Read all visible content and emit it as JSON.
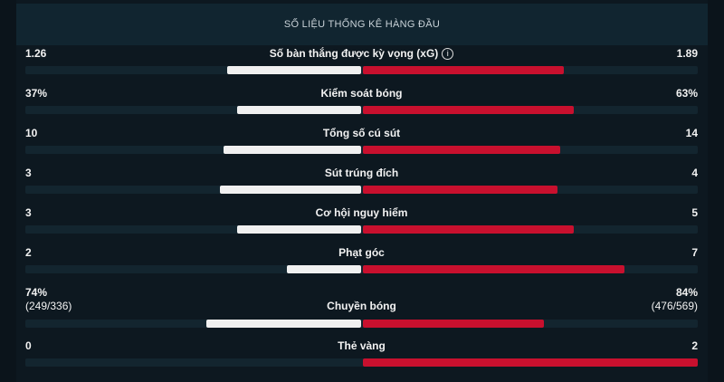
{
  "header": {
    "title": "SỐ LIỆU THỐNG KÊ HÀNG ĐẦU"
  },
  "colors": {
    "home": "#f0f0f0",
    "away": "#c8102e",
    "track": "#13252f"
  },
  "stats": [
    {
      "label": "Số bàn thắng được kỳ vọng (xG)",
      "home": "1.26",
      "away": "1.89",
      "home_share": 0.4,
      "away_share": 0.6,
      "info_icon": "info-circle-icon"
    },
    {
      "label": "Kiểm soát bóng",
      "home": "37%",
      "away": "63%",
      "home_share": 0.37,
      "away_share": 0.63
    },
    {
      "label": "Tổng số cú sút",
      "home": "10",
      "away": "14",
      "home_share": 0.41,
      "away_share": 0.59
    },
    {
      "label": "Sút trúng đích",
      "home": "3",
      "away": "4",
      "home_share": 0.42,
      "away_share": 0.58
    },
    {
      "label": "Cơ hội nguy hiểm",
      "home": "3",
      "away": "5",
      "home_share": 0.37,
      "away_share": 0.63
    },
    {
      "label": "Phạt góc",
      "home": "2",
      "away": "7",
      "home_share": 0.22,
      "away_share": 0.78
    },
    {
      "label": "Chuyền bóng",
      "home": "74%",
      "home_sub": "(249/336)",
      "away": "84%",
      "away_sub": "(476/569)",
      "home_share": 0.46,
      "away_share": 0.54
    },
    {
      "label": "Thẻ vàng",
      "home": "0",
      "away": "2",
      "home_share": 0.0,
      "away_share": 1.0
    }
  ]
}
